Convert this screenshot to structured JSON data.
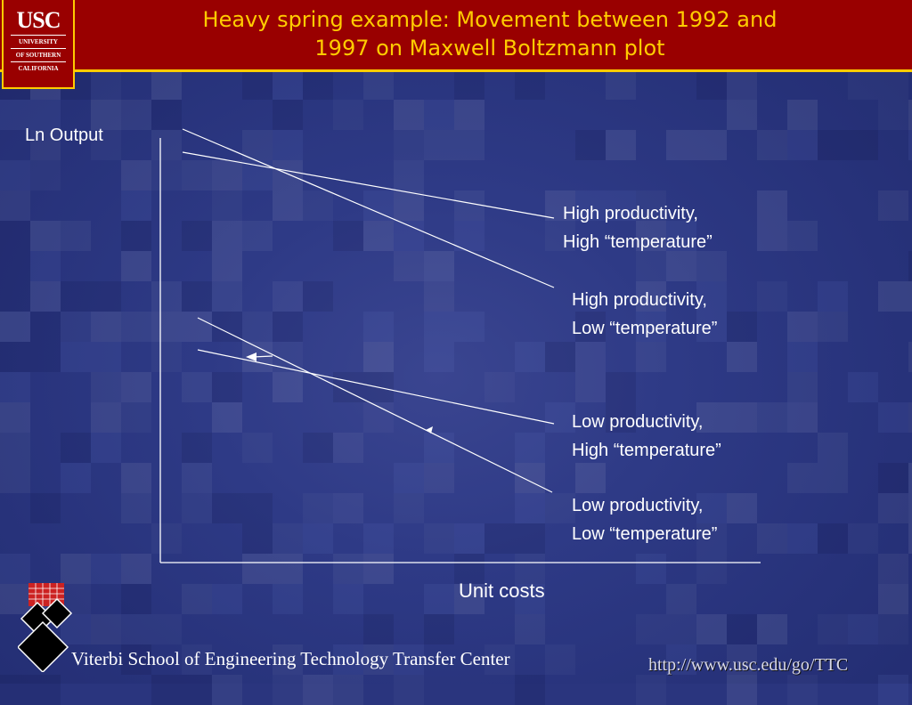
{
  "header": {
    "title_line1": "Heavy spring example: Movement between 1992 and",
    "title_line2": "1997 on Maxwell Boltzmann plot"
  },
  "logo": {
    "big": "USC",
    "line1": "UNIVERSITY",
    "line2": "OF SOUTHERN",
    "line3": "CALIFORNIA"
  },
  "diagram": {
    "y_axis_label": "Ln Output",
    "x_axis_label": "Unit costs",
    "curves": [
      {
        "line1": "High productivity,",
        "line2": "High “temperature”"
      },
      {
        "line1": "High productivity,",
        "line2": "Low “temperature”"
      },
      {
        "line1": "Low productivity,",
        "line2": "High “temperature”"
      },
      {
        "line1": "Low productivity,",
        "line2": "Low “temperature”"
      }
    ]
  },
  "footer": {
    "school": "Viterbi School of Engineering Technology Transfer Center",
    "url": "http://www.usc.edu/go/TTC"
  },
  "colors": {
    "header_bg": "#990000",
    "title_text": "#ffcc00",
    "background": "#2a357e",
    "line": "#ffffff"
  }
}
